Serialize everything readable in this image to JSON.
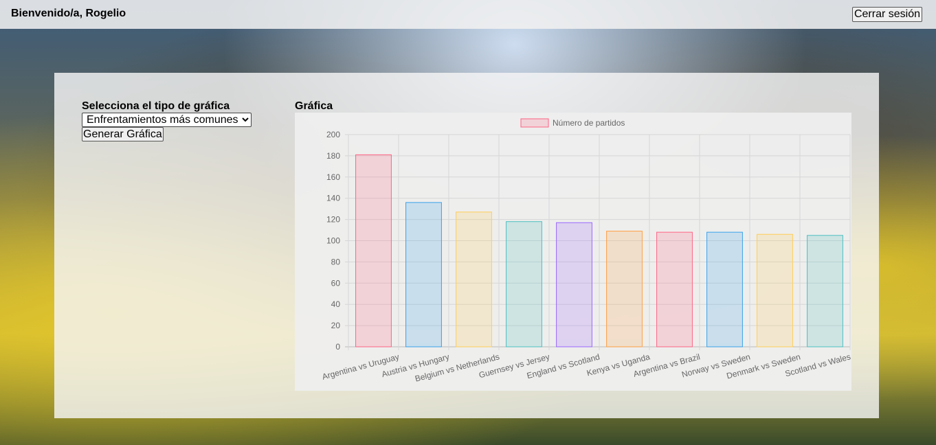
{
  "header": {
    "welcome": "Bienvenido/a, Rogelio",
    "logout_label": "Cerrar sesión"
  },
  "controls": {
    "label": "Selecciona el tipo de gráfica",
    "selected_option": "Enfrentamientos más comunes",
    "generate_label": "Generar Gráfica"
  },
  "chart_section": {
    "title": "Gráfica"
  },
  "chart_data": {
    "type": "bar",
    "categories": [
      "Argentina vs Uruguay",
      "Austria vs Hungary",
      "Belgium vs Netherlands",
      "Guernsey vs Jersey",
      "England vs Scotland",
      "Kenya vs Uganda",
      "Argentina vs Brazil",
      "Norway vs Sweden",
      "Denmark vs Sweden",
      "Scotland vs Wales"
    ],
    "series": [
      {
        "name": "Número de partidos",
        "values": [
          181,
          136,
          127,
          118,
          117,
          109,
          108,
          108,
          106,
          105
        ]
      }
    ],
    "ylim": [
      0,
      200
    ],
    "yticks": [
      0,
      20,
      40,
      60,
      80,
      100,
      120,
      140,
      160,
      180,
      200
    ],
    "grid": true,
    "legend": "top",
    "colors": [
      {
        "fill": "rgba(255,99,132,0.2)",
        "stroke": "#ff6384"
      },
      {
        "fill": "rgba(54,162,235,0.2)",
        "stroke": "#36a2eb"
      },
      {
        "fill": "rgba(255,206,86,0.2)",
        "stroke": "#ffce56"
      },
      {
        "fill": "rgba(75,192,192,0.2)",
        "stroke": "#4bc0c0"
      },
      {
        "fill": "rgba(153,102,255,0.2)",
        "stroke": "#9966ff"
      },
      {
        "fill": "rgba(255,159,64,0.2)",
        "stroke": "#ff9f40"
      },
      {
        "fill": "rgba(255,99,132,0.2)",
        "stroke": "#ff6384"
      },
      {
        "fill": "rgba(54,162,235,0.2)",
        "stroke": "#36a2eb"
      },
      {
        "fill": "rgba(255,206,86,0.2)",
        "stroke": "#ffce56"
      },
      {
        "fill": "rgba(75,192,192,0.2)",
        "stroke": "#4bc0c0"
      }
    ]
  }
}
